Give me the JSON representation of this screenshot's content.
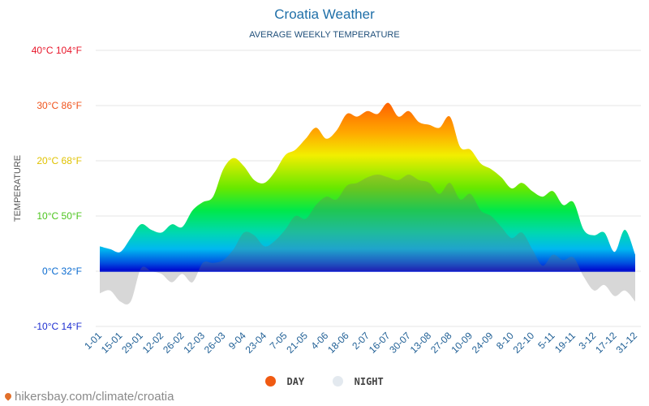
{
  "title": "Croatia Weather",
  "subtitle": "AVERAGE WEEKLY TEMPERATURE",
  "colors": {
    "title": "#1f6fa8",
    "subtitle": "#1f4f7a",
    "day_legend": "#f05a12",
    "night_legend": "#e3e9ef"
  },
  "chart_data": {
    "type": "area",
    "title": "Croatia Weather",
    "subtitle": "AVERAGE WEEKLY TEMPERATURE",
    "ylabel": "TEMPERATURE",
    "ylim": [
      -10,
      40
    ],
    "y_ticks": [
      {
        "value": 40,
        "label": "40°C 104°F",
        "color": "#e8162a"
      },
      {
        "value": 30,
        "label": "30°C 86°F",
        "color": "#f0531b"
      },
      {
        "value": 20,
        "label": "20°C 68°F",
        "color": "#e0c200"
      },
      {
        "value": 10,
        "label": "10°C 50°F",
        "color": "#4cc41e"
      },
      {
        "value": 0,
        "label": "0°C 32°F",
        "color": "#0a6bd0"
      },
      {
        "value": -10,
        "label": "-10°C 14°F",
        "color": "#1c2dd0"
      }
    ],
    "x_tick_labels": [
      "1-01",
      "15-01",
      "29-01",
      "12-02",
      "26-02",
      "12-03",
      "26-03",
      "9-04",
      "23-04",
      "7-05",
      "21-05",
      "4-06",
      "18-06",
      "2-07",
      "16-07",
      "30-07",
      "13-08",
      "27-08",
      "10-09",
      "24-09",
      "8-10",
      "22-10",
      "5-11",
      "19-11",
      "3-12",
      "17-12",
      "31-12"
    ],
    "grid": true,
    "legend_position": "bottom-center",
    "series": [
      {
        "name": "DAY",
        "color": "#f05a12",
        "values": [
          4.5,
          4,
          3.5,
          6,
          8.5,
          7.5,
          7,
          8.5,
          8,
          11,
          12.5,
          13.5,
          18.5,
          20.5,
          19,
          16.5,
          16,
          18,
          21,
          22,
          24,
          26,
          24,
          25.5,
          28.5,
          28,
          29,
          28.5,
          30.5,
          28,
          29,
          27,
          26.5,
          26,
          28,
          22.5,
          22,
          19.5,
          18.5,
          17,
          15,
          16,
          14.5,
          13.5,
          14.5,
          12,
          12.5,
          7.5,
          6.5,
          7,
          3.5,
          7.5,
          3
        ]
      },
      {
        "name": "NIGHT",
        "color": "#e3e9ef",
        "values": [
          -4,
          -3.5,
          -5.5,
          -5.5,
          0.5,
          0,
          -0.5,
          -2,
          -0.5,
          -2,
          1.5,
          1.5,
          2,
          4,
          7,
          6.5,
          4.5,
          5.5,
          7.5,
          10,
          9.5,
          12,
          13.5,
          13,
          15.5,
          16,
          17,
          17.5,
          17,
          16.5,
          17.5,
          16.5,
          16,
          14,
          16,
          13,
          14,
          11,
          10,
          8,
          6,
          7,
          4,
          1,
          3,
          2,
          2.5,
          -1,
          -3.5,
          -2.5,
          -4.5,
          -3.5,
          -5.5
        ]
      }
    ]
  },
  "legend": {
    "day_label": "DAY",
    "night_label": "NIGHT"
  },
  "watermark": "hikersbay.com/climate/croatia"
}
